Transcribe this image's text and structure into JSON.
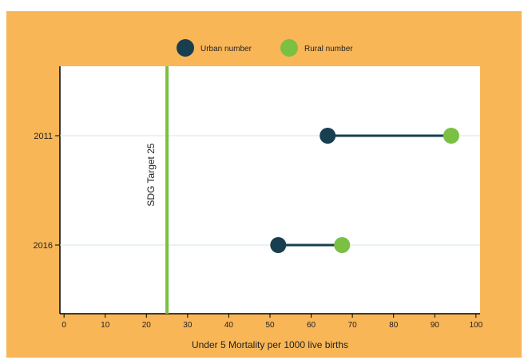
{
  "colors": {
    "frame_background": "#F9B657",
    "plot_background": "#FFFFFF",
    "urban": "#173F4F",
    "rural": "#7AC043",
    "connector": "#173F4F",
    "target_line": "#7AC043",
    "gridline": "#D3E4E6",
    "axis": "#000000"
  },
  "chart_data": {
    "type": "dumbbell",
    "xlabel": "Under 5 Mortality per 1000 live births",
    "ylabel": "",
    "xlim": [
      -1,
      101
    ],
    "x_ticks": [
      "0",
      "10",
      "20",
      "30",
      "40",
      "50",
      "60",
      "70",
      "80",
      "90",
      "100"
    ],
    "categories": [
      "2011",
      "2016"
    ],
    "series": [
      {
        "name": "Urban number",
        "color": "#173F4F",
        "values": [
          64,
          52
        ]
      },
      {
        "name": "Rural number",
        "color": "#7AC043",
        "values": [
          94,
          67.5
        ]
      }
    ],
    "reference_line": {
      "value": 25,
      "label": "SDG Target 25"
    },
    "legend_position": "top-center",
    "grid": "horizontal"
  }
}
